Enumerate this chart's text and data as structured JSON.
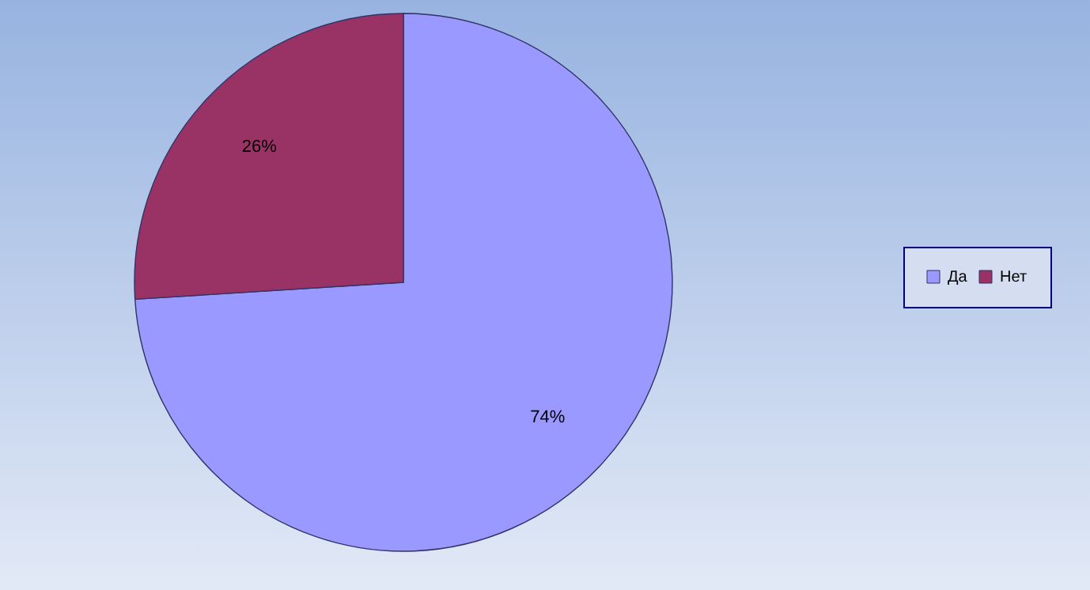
{
  "chart_data": {
    "type": "pie",
    "categories": [
      "Да",
      "Нет"
    ],
    "values": [
      74,
      26
    ],
    "colors": [
      "#9999ff",
      "#993366"
    ],
    "value_labels": [
      "74%",
      "26%"
    ],
    "legend": "right"
  }
}
